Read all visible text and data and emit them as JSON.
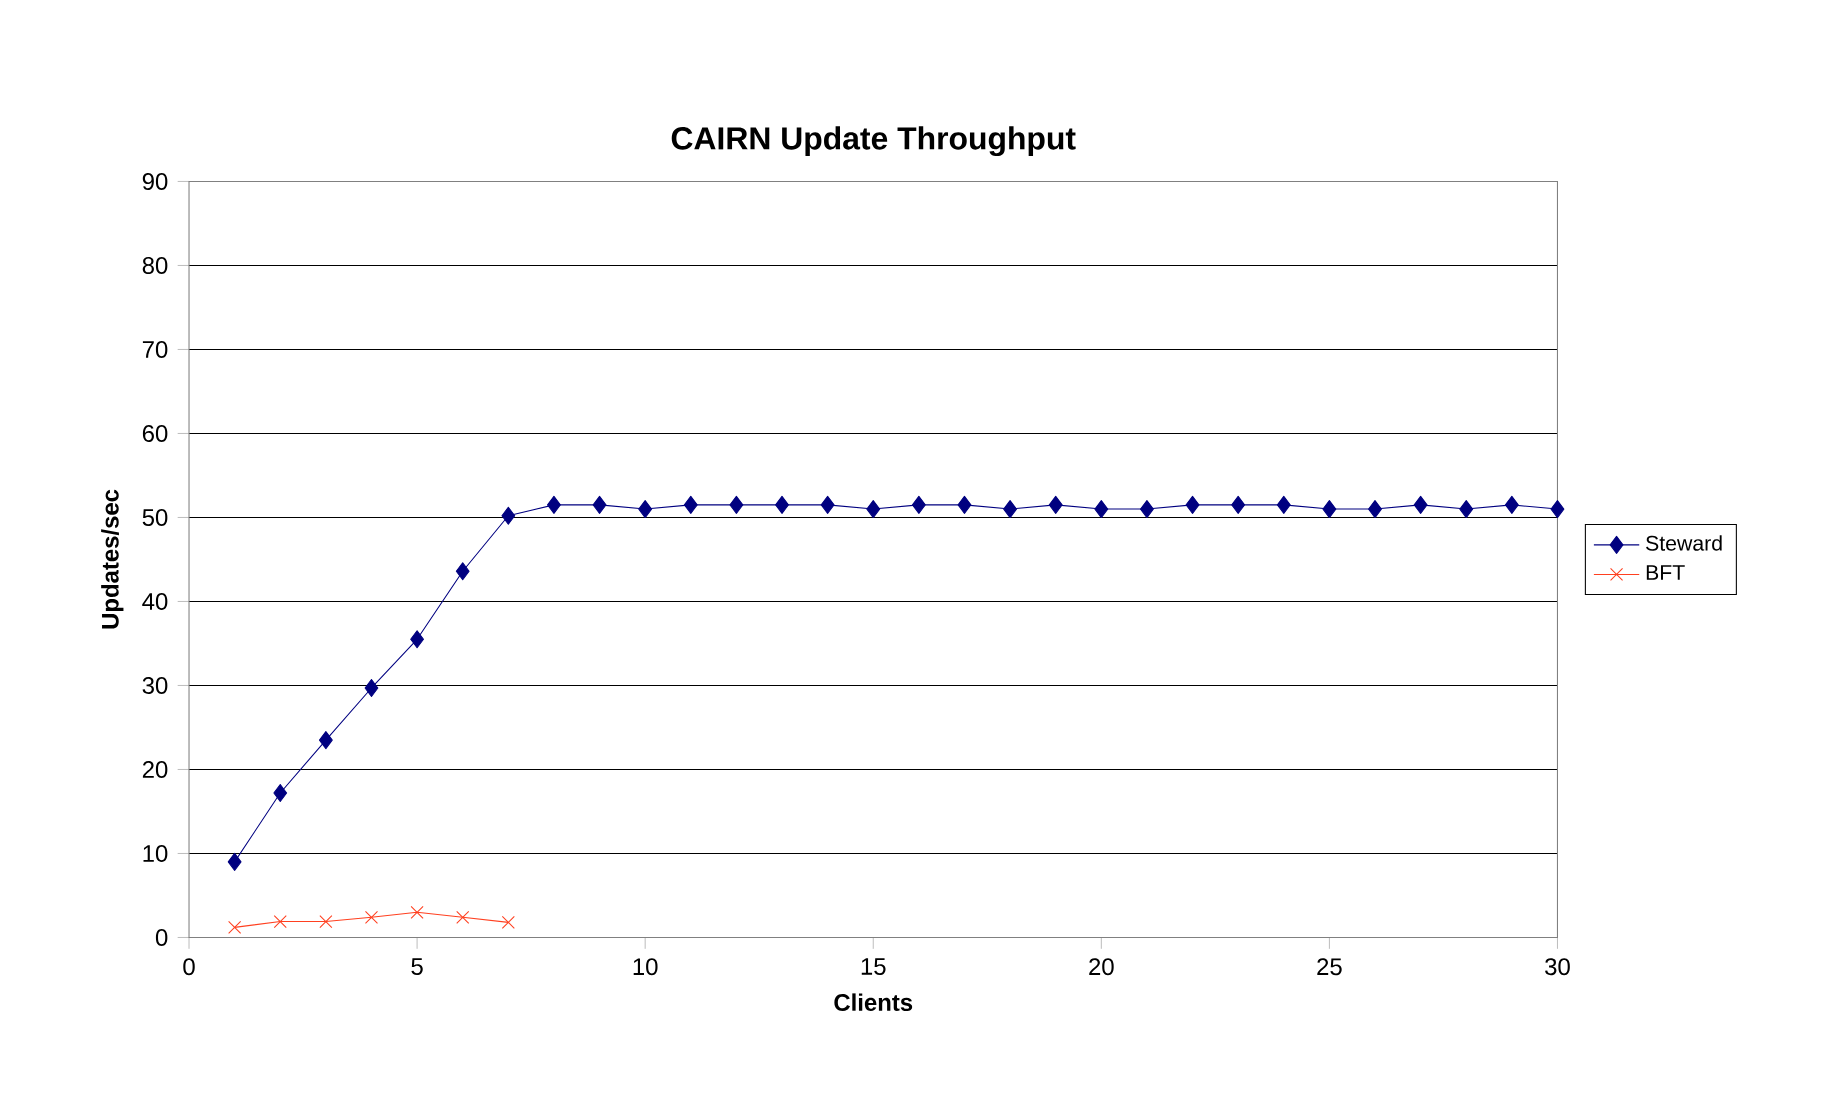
{
  "chart_data": {
    "type": "line",
    "title": "CAIRN Update Throughput",
    "xlabel": "Clients",
    "ylabel": "Updates/sec",
    "xlim": [
      0,
      30
    ],
    "xticks": [
      0,
      5,
      10,
      15,
      20,
      25,
      30
    ],
    "ylim": [
      0,
      90
    ],
    "yticks": [
      0,
      10,
      20,
      30,
      40,
      50,
      60,
      70,
      80,
      90
    ],
    "grid": "y",
    "legend": "right",
    "series": [
      {
        "name": "Steward",
        "color": "#000080",
        "marker": "diamond",
        "x": [
          1,
          2,
          3,
          4,
          5,
          6,
          7,
          8,
          9,
          10,
          11,
          12,
          13,
          14,
          15,
          16,
          17,
          18,
          19,
          20,
          21,
          22,
          23,
          24,
          25,
          26,
          27,
          28,
          29,
          30
        ],
        "values": [
          9,
          17.2,
          23.5,
          29.7,
          35.5,
          43.6,
          50.2,
          51.5,
          51.5,
          51,
          51.5,
          51.5,
          51.5,
          51.5,
          51,
          51.5,
          51.5,
          51,
          51.5,
          51,
          51,
          51.5,
          51.5,
          51.5,
          51,
          51,
          51.5,
          51,
          51.5,
          51
        ]
      },
      {
        "name": "BFT",
        "color": "#ff4020",
        "marker": "cross",
        "x": [
          1,
          2,
          3,
          4,
          5,
          6,
          7
        ],
        "values": [
          1.2,
          1.9,
          1.9,
          2.4,
          3.0,
          2.4,
          1.8
        ]
      }
    ]
  }
}
